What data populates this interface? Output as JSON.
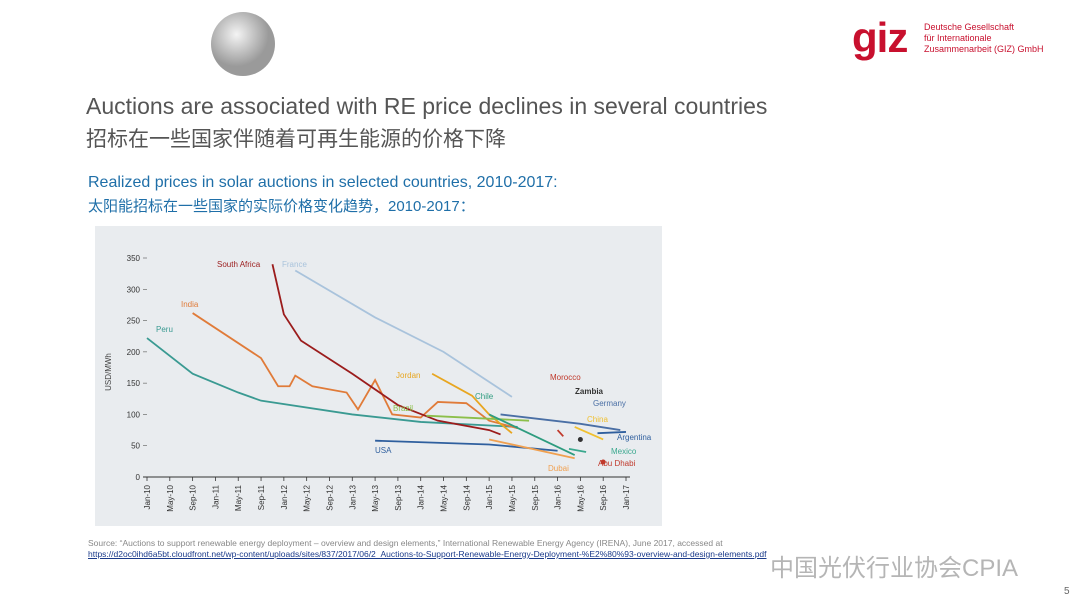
{
  "header": {
    "logo": "giz",
    "org_lines": [
      "Deutsche Gesellschaft",
      "für Internationale",
      "Zusammenarbeit (GIZ) GmbH"
    ]
  },
  "title": "Auctions are associated with RE price declines in several countries",
  "title_cn": "招标在一些国家伴随着可再生能源的价格下降",
  "chart_subtitle": "Realized prices in solar auctions in selected countries, 2010-2017:",
  "chart_subtitle_cn": "太阳能招标在一些国家的实际价格变化趋势，2010-2017：",
  "chart_data": {
    "type": "line",
    "y_label": "USD/MWh",
    "xlim": [
      "2010-01",
      "2017-01"
    ],
    "xticks": [
      {
        "value": "2010-01",
        "label": "Jan-10"
      },
      {
        "value": "2010-05",
        "label": "May-10"
      },
      {
        "value": "2010-09",
        "label": "Sep-10"
      },
      {
        "value": "2011-01",
        "label": "Jan-11"
      },
      {
        "value": "2011-05",
        "label": "May-11"
      },
      {
        "value": "2011-09",
        "label": "Sep-11"
      },
      {
        "value": "2012-01",
        "label": "Jan-12"
      },
      {
        "value": "2012-05",
        "label": "May-12"
      },
      {
        "value": "2012-09",
        "label": "Sep-12"
      },
      {
        "value": "2013-01",
        "label": "Jan-13"
      },
      {
        "value": "2013-05",
        "label": "May-13"
      },
      {
        "value": "2013-09",
        "label": "Sep-13"
      },
      {
        "value": "2014-01",
        "label": "Jan-14"
      },
      {
        "value": "2014-05",
        "label": "May-14"
      },
      {
        "value": "2014-09",
        "label": "Sep-14"
      },
      {
        "value": "2015-01",
        "label": "Jan-15"
      },
      {
        "value": "2015-05",
        "label": "May-15"
      },
      {
        "value": "2015-09",
        "label": "Sep-15"
      },
      {
        "value": "2016-01",
        "label": "Jan-16"
      },
      {
        "value": "2016-05",
        "label": "May-16"
      },
      {
        "value": "2016-09",
        "label": "Sep-16"
      },
      {
        "value": "2017-01",
        "label": "Jan-17"
      }
    ],
    "ylim": [
      0,
      350
    ],
    "yticks": [
      0,
      50,
      100,
      150,
      200,
      250,
      300,
      350
    ],
    "series": [
      {
        "name": "Peru",
        "color": "#3a9a92",
        "x": [
          "2010-01",
          "2010-09",
          "2011-05",
          "2011-09",
          "2013-01",
          "2014-01",
          "2015-06"
        ],
        "values": [
          222,
          165,
          135,
          122,
          100,
          88,
          80
        ]
      },
      {
        "name": "India",
        "color": "#e07b39",
        "x": [
          "2010-09",
          "2011-09",
          "2011-12",
          "2012-02",
          "2012-03",
          "2012-06",
          "2012-12",
          "2013-02",
          "2013-05",
          "2013-08",
          "2014-01",
          "2014-04",
          "2014-09",
          "2015-01",
          "2015-06"
        ],
        "values": [
          262,
          190,
          145,
          145,
          162,
          145,
          135,
          108,
          155,
          100,
          95,
          120,
          118,
          90,
          78
        ]
      },
      {
        "name": "South Africa",
        "color": "#9b1c1c",
        "x": [
          "2011-11",
          "2012-01",
          "2012-04",
          "2013-01",
          "2013-09",
          "2014-04",
          "2015-01",
          "2015-03"
        ],
        "values": [
          340,
          260,
          218,
          165,
          115,
          90,
          75,
          68
        ]
      },
      {
        "name": "France",
        "color": "#a9c3dc",
        "x": [
          "2012-03",
          "2013-05",
          "2014-05",
          "2015-05"
        ],
        "values": [
          330,
          255,
          200,
          128
        ]
      },
      {
        "name": "Jordan",
        "color": "#e8a620",
        "x": [
          "2014-03",
          "2014-10",
          "2015-01",
          "2015-05"
        ],
        "values": [
          165,
          130,
          100,
          70
        ]
      },
      {
        "name": "Brazil",
        "color": "#8cbf4a",
        "x": [
          "2014-02",
          "2015-08"
        ],
        "values": [
          98,
          90
        ]
      },
      {
        "name": "Chile",
        "color": "#2e9c7f",
        "x": [
          "2015-01",
          "2016-04"
        ],
        "values": [
          100,
          35
        ]
      },
      {
        "name": "USA",
        "color": "#2f5f9e",
        "x": [
          "2013-05",
          "2015-01",
          "2016-01"
        ],
        "values": [
          58,
          52,
          42
        ]
      },
      {
        "name": "Morocco",
        "color": "#c0392b",
        "x": [
          "2016-01",
          "2016-02"
        ],
        "values": [
          75,
          65
        ]
      },
      {
        "name": "Zambia",
        "color": "#333333",
        "x": [
          "2016-05"
        ],
        "values": [
          60
        ]
      },
      {
        "name": "Germany",
        "color": "#4a6fa5",
        "x": [
          "2015-03",
          "2016-05",
          "2016-12"
        ],
        "values": [
          100,
          85,
          75
        ]
      },
      {
        "name": "China",
        "color": "#f0c030",
        "x": [
          "2016-04",
          "2016-09"
        ],
        "values": [
          80,
          60
        ]
      },
      {
        "name": "Argentina",
        "color": "#2f5f9e",
        "x": [
          "2016-08",
          "2017-01"
        ],
        "values": [
          70,
          72
        ]
      },
      {
        "name": "Mexico",
        "color": "#3aa88e",
        "x": [
          "2016-03",
          "2016-06"
        ],
        "values": [
          45,
          40
        ]
      },
      {
        "name": "Dubai",
        "color": "#f0a050",
        "x": [
          "2015-01",
          "2016-04"
        ],
        "values": [
          60,
          30
        ]
      },
      {
        "name": "Abu Dhabi",
        "color": "#c0392b",
        "x": [
          "2016-09"
        ],
        "values": [
          24
        ]
      }
    ]
  },
  "source": "Source: “Auctions to support renewable energy deployment – overview and design elements,” International Renewable Energy Agency (IRENA), June 2017, accessed at",
  "source_url": "https://d2oc0ihd6a5bt.cloudfront.net/wp-content/uploads/sites/837/2017/06/2_Auctions-to-Support-Renewable-Energy-Deployment-%E2%80%93-overview-and-design-elements.pdf",
  "watermark": "中国光伏行业协会CPIA",
  "page_number": "5"
}
